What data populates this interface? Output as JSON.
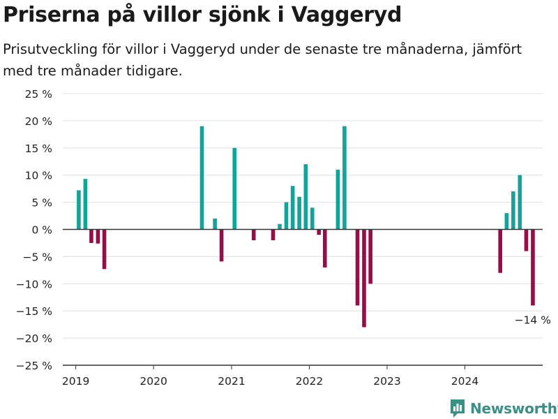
{
  "title": "Priserna på villor sjönk i Vaggeryd",
  "subtitle": "Prisutveckling för villor i Vaggeryd under de senaste tre månaderna, jämfört med tre månader tidigare.",
  "brand": {
    "name": "Newsworthy",
    "icon": "newsworthy-logo-icon",
    "color": "#3a8f87"
  },
  "colors": {
    "positive": "#13a39b",
    "negative": "#960e47",
    "grid": "#e0e0e0",
    "axis": "#333333",
    "text": "#222222"
  },
  "chart_data": {
    "type": "bar",
    "title": "Priserna på villor sjönk i Vaggeryd",
    "subtitle": "Prisutveckling för villor i Vaggeryd under de senaste tre månaderna, jämfört med tre månader tidigare.",
    "xlabel": "",
    "ylabel": "",
    "ylim": [
      -25,
      25
    ],
    "yticks": [
      25,
      20,
      15,
      10,
      5,
      0,
      -5,
      -10,
      -15,
      -20,
      -25
    ],
    "ytick_labels": [
      "25 %",
      "20 %",
      "15 %",
      "10 %",
      "5 %",
      "0 %",
      "−5 %",
      "−10 %",
      "−15 %",
      "−20 %",
      "−25 %"
    ],
    "xlim": [
      "2018-11-01",
      "2024-12-31"
    ],
    "xticks": [
      "2019-01-01",
      "2020-01-01",
      "2021-01-01",
      "2022-01-01",
      "2023-01-01",
      "2024-01-01"
    ],
    "xtick_labels": [
      "2019",
      "2020",
      "2021",
      "2022",
      "2023",
      "2024"
    ],
    "grid": true,
    "legend": "none",
    "series": [
      {
        "points": [
          {
            "x": "2019-01",
            "y": 7.2
          },
          {
            "x": "2019-02",
            "y": 9.3
          },
          {
            "x": "2019-03",
            "y": -2.5
          },
          {
            "x": "2019-04",
            "y": -2.6
          },
          {
            "x": "2019-05",
            "y": -7.3
          },
          {
            "x": "2020-08",
            "y": 19.0
          },
          {
            "x": "2020-10",
            "y": 2.0
          },
          {
            "x": "2020-11",
            "y": -5.9
          },
          {
            "x": "2021-01",
            "y": 15.0
          },
          {
            "x": "2021-04",
            "y": -2.0
          },
          {
            "x": "2021-07",
            "y": -2.0
          },
          {
            "x": "2021-08",
            "y": 1.0
          },
          {
            "x": "2021-09",
            "y": 5.0
          },
          {
            "x": "2021-10",
            "y": 8.0
          },
          {
            "x": "2021-11",
            "y": 6.0
          },
          {
            "x": "2021-12",
            "y": 12.0
          },
          {
            "x": "2022-01",
            "y": 4.0
          },
          {
            "x": "2022-02",
            "y": -1.0
          },
          {
            "x": "2022-03",
            "y": -7.0
          },
          {
            "x": "2022-05",
            "y": 11.0
          },
          {
            "x": "2022-06",
            "y": 19.0
          },
          {
            "x": "2022-08",
            "y": -14.0
          },
          {
            "x": "2022-09",
            "y": -18.0
          },
          {
            "x": "2022-10",
            "y": -10.0
          },
          {
            "x": "2024-06",
            "y": -8.0
          },
          {
            "x": "2024-07",
            "y": 3.0
          },
          {
            "x": "2024-08",
            "y": 7.0
          },
          {
            "x": "2024-09",
            "y": 10.0
          },
          {
            "x": "2024-10",
            "y": -4.0
          },
          {
            "x": "2024-11",
            "y": -14.0
          }
        ]
      }
    ],
    "annotations": [
      {
        "x": "2024-11",
        "y": -14.0,
        "text": "−14 %"
      }
    ]
  }
}
